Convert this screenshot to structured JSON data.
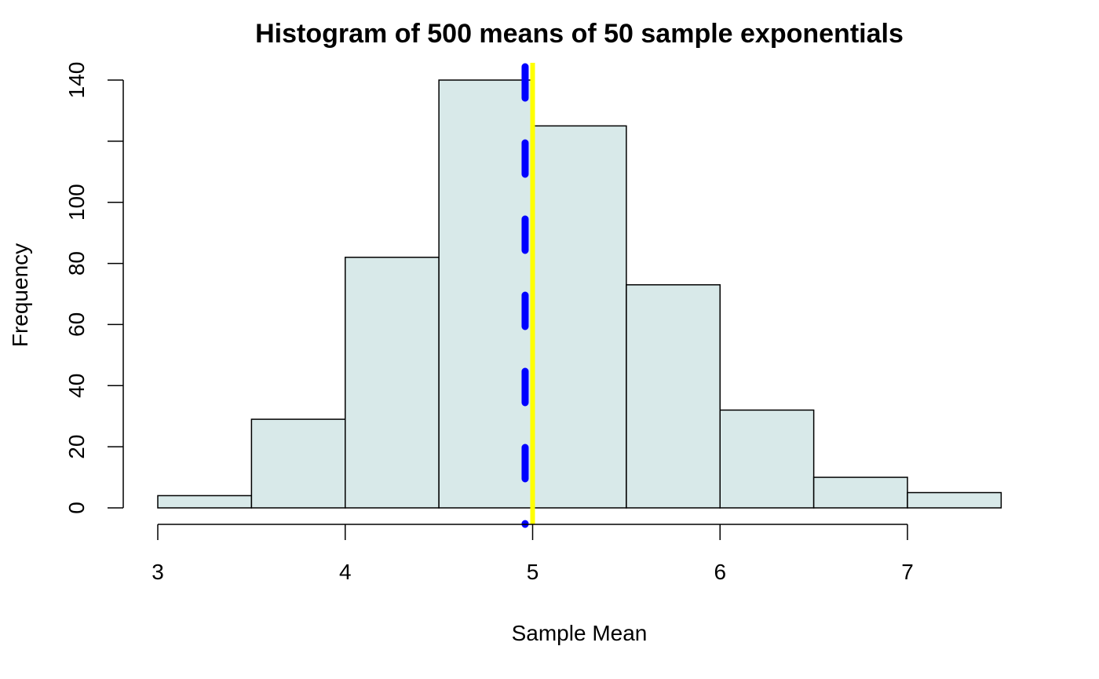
{
  "chart_data": {
    "type": "bar",
    "title": "Histogram of 500 means of 50 sample exponentials",
    "xlabel": "Sample Mean",
    "ylabel": "Frequency",
    "bins": [
      {
        "from": 3.0,
        "to": 3.5,
        "count": 4
      },
      {
        "from": 3.5,
        "to": 4.0,
        "count": 29
      },
      {
        "from": 4.0,
        "to": 4.5,
        "count": 82
      },
      {
        "from": 4.5,
        "to": 5.0,
        "count": 140
      },
      {
        "from": 5.0,
        "to": 5.5,
        "count": 125
      },
      {
        "from": 5.5,
        "to": 6.0,
        "count": 73
      },
      {
        "from": 6.0,
        "to": 6.5,
        "count": 32
      },
      {
        "from": 6.5,
        "to": 7.0,
        "count": 10
      },
      {
        "from": 7.0,
        "to": 7.5,
        "count": 5
      }
    ],
    "xlim": [
      3,
      7.5
    ],
    "ylim": [
      0,
      140
    ],
    "x_ticks": [
      "3",
      "4",
      "5",
      "6",
      "7"
    ],
    "y_ticks": [
      "0",
      "20",
      "40",
      "60",
      "80",
      "100",
      "140"
    ],
    "vlines": [
      {
        "x": 5.0,
        "color": "#ffff00",
        "style": "solid"
      },
      {
        "x": 4.96,
        "color": "#0000ff",
        "style": "dashed"
      }
    ],
    "bar_fill": "#d8e9e9",
    "grid": false,
    "legend": "none"
  }
}
